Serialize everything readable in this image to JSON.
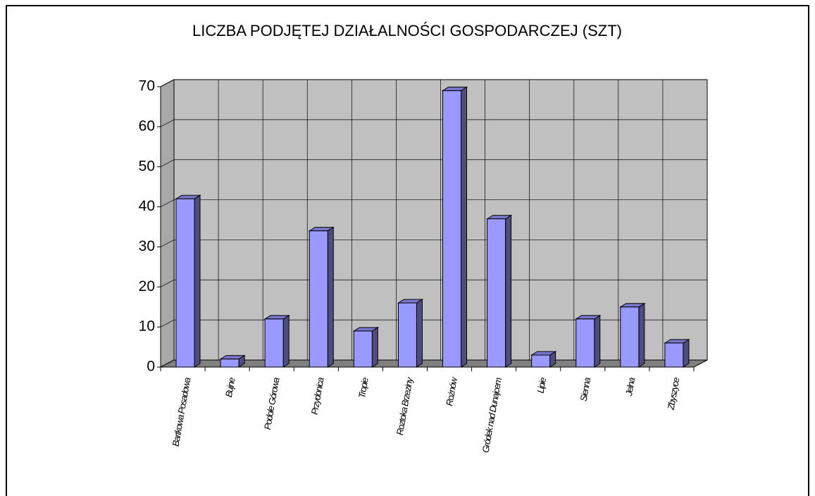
{
  "chart_data": {
    "type": "bar3d",
    "title": "LICZBA PODJĘTEJ DZIAŁALNOŚCI GOSPODARCZEJ (SZT)",
    "categories": [
      "Bartkowa Posadowa",
      "Bujne",
      "Podole Górowa",
      "Przydonica",
      "Tropie",
      "Roztoka Brzeziny",
      "Rożnów",
      "Gródek nad Dunajcem",
      "Lipie",
      "Sienna",
      "Jelna",
      "Zbyszyce"
    ],
    "values": [
      42,
      2,
      12,
      34,
      9,
      16,
      69,
      37,
      3,
      12,
      15,
      6
    ],
    "color": "#9999ff",
    "ylim": [
      0,
      70
    ],
    "yticks": [
      0,
      10,
      20,
      30,
      40,
      50,
      60,
      70
    ],
    "grid": true
  }
}
